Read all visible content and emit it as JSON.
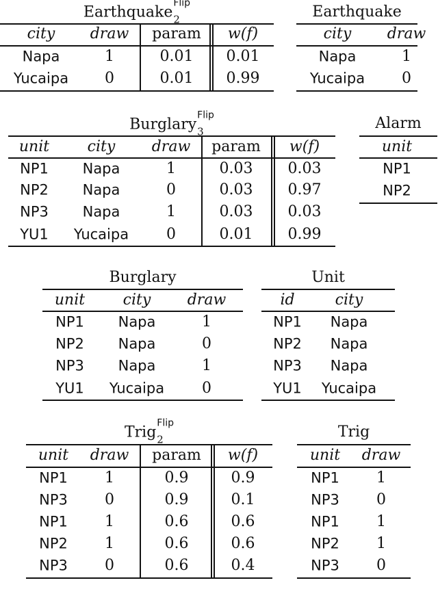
{
  "tables": [
    {
      "title": {
        "base": "Earthquake",
        "sub": "2",
        "sup": "Flip"
      },
      "columns": [
        "city",
        "draw",
        "param",
        "w(f)"
      ],
      "rows": [
        [
          "Napa",
          "1",
          "0.01",
          "0.01"
        ],
        [
          "Yucaipa",
          "0",
          "0.01",
          "0.99"
        ]
      ]
    },
    {
      "title": {
        "base": "Earthquake"
      },
      "columns": [
        "city",
        "draw"
      ],
      "rows": [
        [
          "Napa",
          "1"
        ],
        [
          "Yucaipa",
          "0"
        ]
      ]
    },
    {
      "title": {
        "base": "Burglary",
        "sub": "3",
        "sup": "Flip"
      },
      "columns": [
        "unit",
        "city",
        "draw",
        "param",
        "w(f)"
      ],
      "rows": [
        [
          "NP1",
          "Napa",
          "1",
          "0.03",
          "0.03"
        ],
        [
          "NP2",
          "Napa",
          "0",
          "0.03",
          "0.97"
        ],
        [
          "NP3",
          "Napa",
          "1",
          "0.03",
          "0.03"
        ],
        [
          "YU1",
          "Yucaipa",
          "0",
          "0.01",
          "0.99"
        ]
      ]
    },
    {
      "title": {
        "base": "Alarm"
      },
      "columns": [
        "unit"
      ],
      "rows": [
        [
          "NP1"
        ],
        [
          "NP2"
        ]
      ]
    },
    {
      "title": {
        "base": "Burglary"
      },
      "columns": [
        "unit",
        "city",
        "draw"
      ],
      "rows": [
        [
          "NP1",
          "Napa",
          "1"
        ],
        [
          "NP2",
          "Napa",
          "0"
        ],
        [
          "NP3",
          "Napa",
          "1"
        ],
        [
          "YU1",
          "Yucaipa",
          "0"
        ]
      ]
    },
    {
      "title": {
        "base": "Unit"
      },
      "columns": [
        "id",
        "city"
      ],
      "rows": [
        [
          "NP1",
          "Napa"
        ],
        [
          "NP2",
          "Napa"
        ],
        [
          "NP3",
          "Napa"
        ],
        [
          "YU1",
          "Yucaipa"
        ]
      ]
    },
    {
      "title": {
        "base": "Trig",
        "sub": "2",
        "sup": "Flip"
      },
      "columns": [
        "unit",
        "draw",
        "param",
        "w(f)"
      ],
      "rows": [
        [
          "NP1",
          "1",
          "0.9",
          "0.9"
        ],
        [
          "NP3",
          "0",
          "0.9",
          "0.1"
        ],
        [
          "NP1",
          "1",
          "0.6",
          "0.6"
        ],
        [
          "NP2",
          "1",
          "0.6",
          "0.6"
        ],
        [
          "NP3",
          "0",
          "0.6",
          "0.4"
        ]
      ]
    },
    {
      "title": {
        "base": "Trig"
      },
      "columns": [
        "unit",
        "draw"
      ],
      "rows": [
        [
          "NP1",
          "1"
        ],
        [
          "NP3",
          "0"
        ],
        [
          "NP1",
          "1"
        ],
        [
          "NP2",
          "1"
        ],
        [
          "NP3",
          "0"
        ]
      ]
    }
  ]
}
